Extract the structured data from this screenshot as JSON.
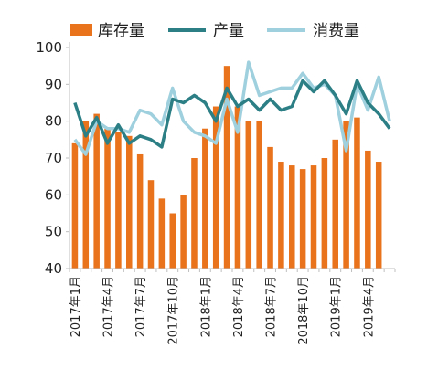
{
  "chart_data": {
    "type": "bar",
    "title": "",
    "xlabel": "",
    "ylabel": "",
    "ylim": [
      40,
      100
    ],
    "yticks": [
      40,
      50,
      60,
      70,
      80,
      90,
      100
    ],
    "grid": false,
    "legend_placement": "top",
    "categories": [
      "2017年1月",
      "2017年2月",
      "2017年3月",
      "2017年4月",
      "2017年5月",
      "2017年6月",
      "2017年7月",
      "2017年8月",
      "2017年9月",
      "2017年10月",
      "2017年11月",
      "2017年12月",
      "2018年1月",
      "2018年2月",
      "2018年3月",
      "2018年4月",
      "2018年5月",
      "2018年6月",
      "2018年7月",
      "2018年8月",
      "2018年9月",
      "2018年10月",
      "2018年11月",
      "2018年12月",
      "2019年1月",
      "2019年2月",
      "2019年3月",
      "2019年4月",
      "2019年5月",
      "2019年6月"
    ],
    "x_tick_labels": [
      "2017年1月",
      "2017年4月",
      "2017年7月",
      "2017年10月",
      "2018年1月",
      "2018年4月",
      "2018年7月",
      "2018年10月",
      "2019年1月",
      "2019年4月"
    ],
    "x_tick_indices": [
      0,
      3,
      6,
      9,
      12,
      15,
      18,
      21,
      24,
      27
    ],
    "series": [
      {
        "name": "库存量",
        "kind": "bar",
        "color": "#e8731c",
        "values": [
          74,
          80,
          82,
          78,
          77,
          76,
          71,
          64,
          59,
          55,
          60,
          70,
          78,
          84,
          95,
          84,
          80,
          80,
          73,
          69,
          68,
          67,
          68,
          70,
          75,
          80,
          81,
          72,
          69,
          null
        ]
      },
      {
        "name": "产量",
        "kind": "line",
        "color": "#2d7f86",
        "values": [
          85,
          76,
          81,
          74,
          79,
          74,
          76,
          75,
          73,
          86,
          85,
          87,
          85,
          80,
          89,
          84,
          86,
          83,
          86,
          83,
          84,
          91,
          88,
          91,
          87,
          82,
          91,
          85,
          82,
          78
        ]
      },
      {
        "name": "消费量",
        "kind": "line",
        "color": "#9fd0de",
        "values": [
          75,
          71,
          80,
          78,
          78,
          77,
          83,
          82,
          79,
          89,
          80,
          77,
          76,
          74,
          86,
          77,
          96,
          87,
          88,
          89,
          89,
          93,
          89,
          90,
          87,
          72,
          90,
          83,
          92,
          80
        ]
      }
    ]
  }
}
